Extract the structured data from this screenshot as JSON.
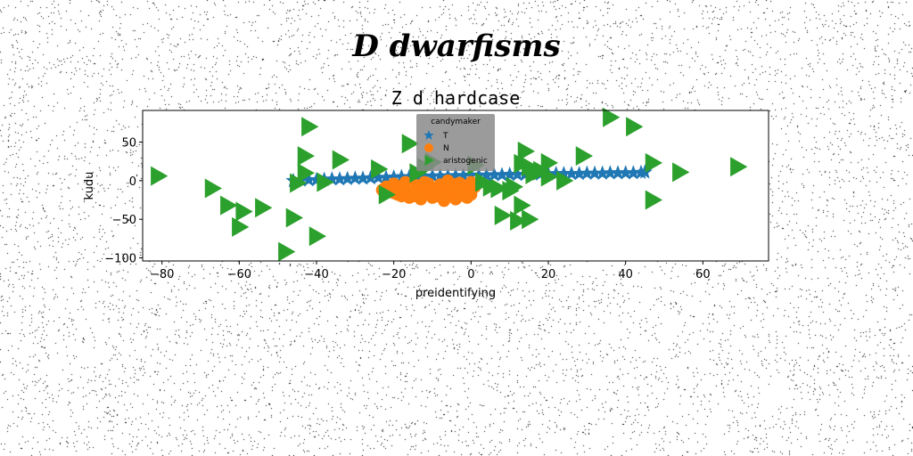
{
  "suptitle": "D dwarfisms",
  "chart_data": {
    "type": "scatter",
    "title": "Z d hardcase",
    "xlabel": "preidentifying",
    "ylabel": "kudu",
    "xlim": [
      -85,
      77
    ],
    "ylim": [
      -104,
      91
    ],
    "xticks": [
      -80,
      -60,
      -40,
      -20,
      0,
      20,
      40,
      60
    ],
    "yticks": [
      -100,
      -50,
      0,
      50
    ],
    "grid": false,
    "legend": {
      "title": "candymaker",
      "placement": "upper-center"
    },
    "series": [
      {
        "name": "T",
        "marker": "star",
        "color": "#1f77b4",
        "points": [
          [
            -46,
            0
          ],
          [
            -44,
            0.5
          ],
          [
            -42,
            1
          ],
          [
            -40,
            1
          ],
          [
            -38,
            1.5
          ],
          [
            -36,
            2
          ],
          [
            -34,
            2
          ],
          [
            -32,
            2.5
          ],
          [
            -30,
            3
          ],
          [
            -28,
            3
          ],
          [
            -26,
            3.5
          ],
          [
            -24,
            4
          ],
          [
            -22,
            4
          ],
          [
            -20,
            4.5
          ],
          [
            -18,
            5
          ],
          [
            -16,
            5
          ],
          [
            -14,
            5
          ],
          [
            -12,
            5.5
          ],
          [
            -10,
            6
          ],
          [
            -8,
            6
          ],
          [
            -6,
            6
          ],
          [
            -4,
            6.5
          ],
          [
            -2,
            6.5
          ],
          [
            0,
            7
          ],
          [
            2,
            7
          ],
          [
            4,
            7
          ],
          [
            6,
            7.5
          ],
          [
            8,
            7.5
          ],
          [
            10,
            8
          ],
          [
            12,
            8
          ],
          [
            14,
            8
          ],
          [
            16,
            8.5
          ],
          [
            18,
            8.5
          ],
          [
            20,
            8.5
          ],
          [
            22,
            9
          ],
          [
            24,
            9
          ],
          [
            26,
            9
          ],
          [
            28,
            9
          ],
          [
            30,
            9.5
          ],
          [
            32,
            9.5
          ],
          [
            34,
            9.5
          ],
          [
            36,
            10
          ],
          [
            38,
            10
          ],
          [
            40,
            10
          ],
          [
            42,
            10
          ],
          [
            44,
            10.5
          ],
          [
            45,
            11
          ]
        ]
      },
      {
        "name": "N",
        "marker": "circle",
        "color": "#ff7f0e",
        "points": [
          [
            -22,
            -8
          ],
          [
            -21,
            -14
          ],
          [
            -20,
            -4
          ],
          [
            -19,
            -18
          ],
          [
            -18,
            -10
          ],
          [
            -17,
            -2
          ],
          [
            -16,
            -15
          ],
          [
            -15,
            -20
          ],
          [
            -14,
            -6
          ],
          [
            -13,
            -12
          ],
          [
            -12,
            -18
          ],
          [
            -12,
            -2
          ],
          [
            -11,
            -8
          ],
          [
            -10,
            -14
          ],
          [
            -9,
            -20
          ],
          [
            -8,
            -5
          ],
          [
            -7,
            -11
          ],
          [
            -6,
            -17
          ],
          [
            -6,
            0
          ],
          [
            -5,
            -9
          ],
          [
            -4,
            -14
          ],
          [
            -3,
            -20
          ],
          [
            -3,
            -3
          ],
          [
            -2,
            -8
          ],
          [
            -1,
            -13
          ],
          [
            0,
            -18
          ],
          [
            0,
            -2
          ],
          [
            -18,
            -20
          ],
          [
            -16,
            -22
          ],
          [
            -13,
            -24
          ],
          [
            -10,
            -22
          ],
          [
            -7,
            -26
          ],
          [
            -4,
            -24
          ],
          [
            -1,
            -22
          ],
          [
            -20,
            -16
          ],
          [
            -14,
            -16
          ],
          [
            -8,
            -16
          ],
          [
            -2,
            -16
          ],
          [
            -23,
            -12
          ],
          [
            -11,
            -4
          ],
          [
            -5,
            -4
          ],
          [
            1,
            -8
          ]
        ]
      },
      {
        "name": "aristogenic",
        "marker": "triangle-right",
        "color": "#2ca02c",
        "points": [
          [
            -81,
            6
          ],
          [
            -67,
            -10
          ],
          [
            -63,
            -32
          ],
          [
            -59,
            -40
          ],
          [
            -60,
            -60
          ],
          [
            -54,
            -35
          ],
          [
            -46,
            -48
          ],
          [
            -48,
            -92
          ],
          [
            -45,
            -3
          ],
          [
            -43,
            32
          ],
          [
            -43,
            10
          ],
          [
            -42,
            70
          ],
          [
            -40,
            -72
          ],
          [
            -38,
            -2
          ],
          [
            -34,
            27
          ],
          [
            -24,
            15
          ],
          [
            -22,
            -18
          ],
          [
            -16,
            48
          ],
          [
            -14,
            10
          ],
          [
            -12,
            17
          ],
          [
            -10,
            24
          ],
          [
            1,
            20
          ],
          [
            3,
            -2
          ],
          [
            5,
            -8
          ],
          [
            7,
            -10
          ],
          [
            8,
            -45
          ],
          [
            10,
            -13
          ],
          [
            11,
            -8
          ],
          [
            12,
            -52
          ],
          [
            13,
            -32
          ],
          [
            15,
            -50
          ],
          [
            13,
            22
          ],
          [
            14,
            38
          ],
          [
            15,
            18
          ],
          [
            16,
            8
          ],
          [
            18,
            13
          ],
          [
            20,
            5
          ],
          [
            20,
            23
          ],
          [
            24,
            0
          ],
          [
            29,
            32
          ],
          [
            36,
            82
          ],
          [
            42,
            70
          ],
          [
            47,
            -25
          ],
          [
            47,
            23
          ],
          [
            54,
            11
          ],
          [
            69,
            18
          ]
        ]
      }
    ]
  }
}
